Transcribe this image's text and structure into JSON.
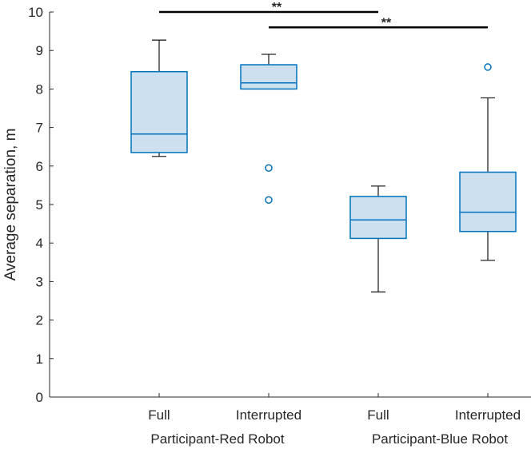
{
  "chart_data": {
    "type": "box",
    "ylabel": "Average separation, m",
    "ylim": [
      0,
      10
    ],
    "yticks": [
      0,
      1,
      2,
      3,
      4,
      5,
      6,
      7,
      8,
      9,
      10
    ],
    "categories": [
      "Full",
      "Interrupted",
      "Full",
      "Interrupted"
    ],
    "groups": [
      "Participant-Red Robot",
      "Participant-Blue Robot"
    ],
    "boxes": [
      {
        "label": "Full",
        "group": "Participant-Red Robot",
        "whisker_low": 6.25,
        "q1": 6.35,
        "median": 6.83,
        "q3": 8.45,
        "whisker_high": 9.27,
        "outliers": []
      },
      {
        "label": "Interrupted",
        "group": "Participant-Red Robot",
        "whisker_low": 8.0,
        "q1": 8.0,
        "median": 8.16,
        "q3": 8.63,
        "whisker_high": 8.9,
        "outliers": [
          5.95,
          5.12
        ]
      },
      {
        "label": "Full",
        "group": "Participant-Blue Robot",
        "whisker_low": 2.73,
        "q1": 4.12,
        "median": 4.6,
        "q3": 5.21,
        "whisker_high": 5.48,
        "outliers": []
      },
      {
        "label": "Interrupted",
        "group": "Participant-Blue Robot",
        "whisker_low": 3.55,
        "q1": 4.3,
        "median": 4.8,
        "q3": 5.84,
        "whisker_high": 7.77,
        "outliers": [
          8.57
        ]
      }
    ],
    "significance": [
      {
        "from": 0,
        "to": 2,
        "y": 10.0,
        "label": "**"
      },
      {
        "from": 1,
        "to": 3,
        "y": 9.6,
        "label": "**"
      }
    ],
    "colors": {
      "box_fill": "#cce0f0",
      "box_edge": "#0072bd",
      "whisker": "#262626",
      "axis": "#262626"
    }
  }
}
